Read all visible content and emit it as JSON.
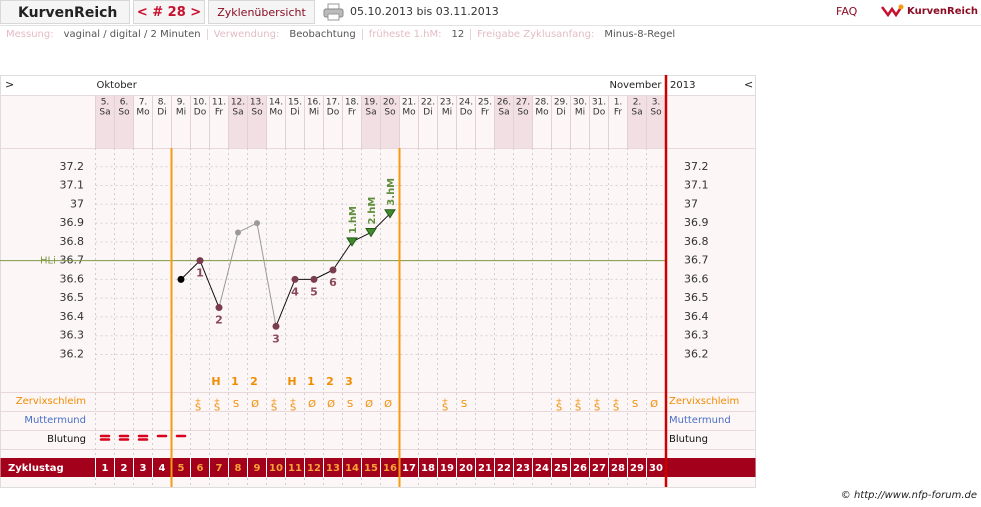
{
  "header": {
    "brand": "KurvenReich",
    "cycle_nav": "< # 28 >",
    "overview": "Zyklenübersicht",
    "period": "05.10.2013 bis 03.11.2013",
    "faq": "FAQ",
    "logo": "KurvenReich"
  },
  "settings": [
    {
      "label": "Messung:",
      "value": "vaginal / digital / 2 Minuten"
    },
    {
      "label": "Verwendung:",
      "value": "Beobachtung"
    },
    {
      "label": "früheste 1.hM:",
      "value": 12
    },
    {
      "label": "Freigabe Zyklusanfang:",
      "value": "Minus-8-Regel"
    }
  ],
  "chart_data": {
    "type": "line",
    "nav_prev": ">",
    "nav_next": "<",
    "months": [
      "Oktober",
      "November"
    ],
    "year": "2013",
    "days": [
      "5.",
      "6.",
      "7.",
      "8.",
      "9.",
      "10.",
      "11.",
      "12.",
      "13.",
      "14.",
      "15.",
      "16.",
      "17.",
      "18.",
      "19.",
      "20.",
      "21.",
      "22.",
      "23.",
      "24.",
      "25.",
      "26.",
      "27.",
      "28.",
      "29.",
      "30.",
      "31.",
      "1.",
      "2.",
      "3."
    ],
    "weekdays": [
      "Sa",
      "So",
      "Mo",
      "Di",
      "Mi",
      "Do",
      "Fr",
      "Sa",
      "So",
      "Mo",
      "Di",
      "Mi",
      "Do",
      "Fr",
      "Sa",
      "So",
      "Mo",
      "Di",
      "Mi",
      "Do",
      "Fr",
      "Sa",
      "So",
      "Mo",
      "Di",
      "Mi",
      "Do",
      "Fr",
      "Sa",
      "So"
    ],
    "ylim": [
      36.0,
      37.3
    ],
    "yticks": [
      36.2,
      36.3,
      36.4,
      36.5,
      36.6,
      36.7,
      36.8,
      36.9,
      37,
      37.1,
      37.2
    ],
    "coverline": {
      "label": "HLi",
      "value": 36.7,
      "color": "#7f9a45"
    },
    "values": [
      null,
      null,
      null,
      null,
      36.6,
      36.7,
      36.45,
      36.85,
      36.9,
      36.35,
      36.6,
      36.6,
      36.65,
      36.8,
      36.85,
      36.95,
      null,
      null,
      null,
      null,
      null,
      null,
      null,
      null,
      null,
      null,
      null,
      null,
      null,
      null
    ],
    "point_styles": [
      null,
      null,
      null,
      null,
      "start",
      "normal",
      "normal",
      "excluded",
      "excluded",
      "normal",
      "normal",
      "normal",
      "normal",
      "high",
      "high",
      "high",
      null,
      null,
      null,
      null,
      null,
      null,
      null,
      null,
      null,
      null,
      null,
      null,
      null,
      null
    ],
    "point_labels": [
      null,
      null,
      null,
      null,
      null,
      "1",
      "2",
      null,
      null,
      "3",
      "4",
      "5",
      "6",
      "1.hM",
      "2.hM",
      "3.hM",
      null,
      null,
      null,
      null,
      null,
      null,
      null,
      null,
      null,
      null,
      null,
      null,
      null,
      null
    ],
    "colors": {
      "start": "#000000",
      "normal": "#7a3d4f",
      "excluded": "#9a9a9a",
      "high": "#3f8a2a"
    },
    "fertile_days": [
      5,
      16
    ],
    "mucus_label": "Zervixschleim",
    "mucus_peak": [
      null,
      null,
      null,
      null,
      null,
      null,
      "H",
      "1",
      "2",
      null,
      "H",
      "1",
      "2",
      "3",
      null,
      null,
      null,
      null,
      null,
      null,
      null,
      null,
      null,
      null,
      null,
      null,
      null,
      null,
      null,
      null
    ],
    "mucus": [
      null,
      null,
      null,
      null,
      null,
      "+S",
      "+S",
      "S",
      "Ø",
      "+S",
      "+S",
      "Ø",
      "Ø",
      "S",
      "Ø",
      "Ø",
      null,
      null,
      "+S",
      "S",
      null,
      null,
      null,
      null,
      "+S",
      "+S",
      "+S",
      "+S",
      "S",
      "Ø"
    ],
    "cervix_label": "Muttermund",
    "bleeding_label": "Blutung",
    "bleeding": [
      2,
      2,
      2,
      1,
      1,
      null,
      null,
      null,
      null,
      null,
      null,
      null,
      null,
      null,
      null,
      null,
      null,
      null,
      null,
      null,
      null,
      null,
      null,
      null,
      null,
      null,
      null,
      null,
      null,
      null
    ],
    "cycle_day_label": "Zyklustag",
    "cycle_days": [
      1,
      2,
      3,
      4,
      5,
      6,
      7,
      8,
      9,
      10,
      11,
      12,
      13,
      14,
      15,
      16,
      17,
      18,
      19,
      20,
      21,
      22,
      23,
      24,
      25,
      26,
      27,
      28,
      29,
      30
    ]
  },
  "copyright": "© http://www.nfp-forum.de"
}
